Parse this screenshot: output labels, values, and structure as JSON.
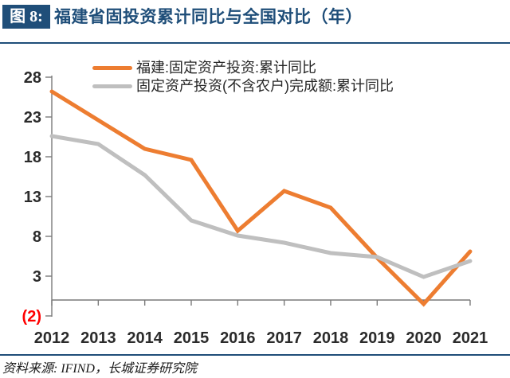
{
  "header": {
    "badge_label": "图 8:",
    "title": "福建省固投资累计同比与全国对比（年）"
  },
  "chart_data": {
    "type": "line",
    "title": "福建省固投资累计同比与全国对比（年）",
    "x": [
      "2012",
      "2013",
      "2014",
      "2015",
      "2016",
      "2017",
      "2018",
      "2019",
      "2020",
      "2021"
    ],
    "series": [
      {
        "name": "福建:固定资产投资:累计同比",
        "color": "#ED7D31",
        "values": [
          26.2,
          22.6,
          19.0,
          17.6,
          8.7,
          13.7,
          11.6,
          5.3,
          -0.5,
          6.1
        ]
      },
      {
        "name": "固定资产投资(不含农户)完成额:累计同比",
        "color": "#BFBFBF",
        "values": [
          20.6,
          19.6,
          15.7,
          10.0,
          8.1,
          7.2,
          5.9,
          5.4,
          2.9,
          4.9
        ]
      }
    ],
    "xlabel": "",
    "ylabel": "",
    "ylim": [
      -2,
      28
    ],
    "yticks": [
      28,
      23,
      18,
      13,
      8,
      3,
      -2
    ],
    "ytick_labels": [
      "28",
      "23",
      "18",
      "13",
      "8",
      "3",
      "(2)"
    ],
    "legend_position": "top",
    "grid": false
  },
  "footer": {
    "source_text": "资料来源: IFIND，长城证券研究院"
  },
  "colors": {
    "navy": "#1F4E79",
    "orange": "#ED7D31",
    "gray": "#BFBFBF",
    "axis": "#7A7A7A",
    "tick_label": "#2B2B2B",
    "negative_tick": "#FF0000"
  }
}
